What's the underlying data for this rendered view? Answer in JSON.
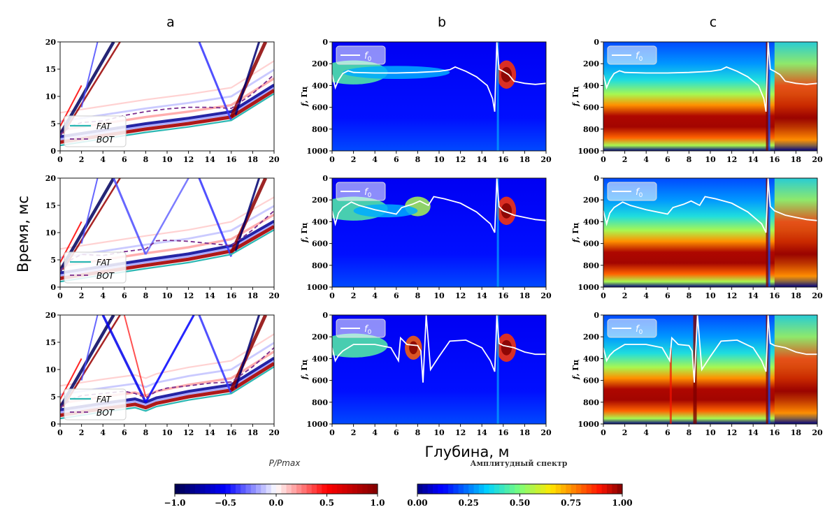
{
  "figure": {
    "column_labels": [
      "a",
      "b",
      "c"
    ],
    "ylabel_time": "Время, мс",
    "xlabel_depth": "Глубина, м",
    "ylabel_freq_prefix": "f",
    "ylabel_freq_unit": ", Гц",
    "f0_legend_base": "f",
    "f0_legend_sub": "0",
    "legend_fat": "FAT",
    "legend_bot": "BOT",
    "colorbar_left_title": "P/Pmax",
    "colorbar_right_title": "Амплитудный спектр",
    "colors": {
      "fat": "#2bb7b3",
      "bot": "#7b2d8e",
      "f0": "#ffffff"
    }
  },
  "chart_data": [
    {
      "type": "heatmap",
      "panel": "a1",
      "xlabel": "",
      "ylabel": "",
      "xlim": [
        0,
        20
      ],
      "ylim": [
        20,
        0
      ],
      "x_ticks": [
        0,
        2,
        4,
        6,
        8,
        10,
        12,
        14,
        16,
        18,
        20
      ],
      "y_ticks": [
        0,
        5,
        10,
        15,
        20
      ],
      "series": [
        {
          "name": "FAT",
          "x": [
            0,
            4,
            8,
            12,
            16,
            20
          ],
          "y": [
            1.0,
            2.2,
            3.4,
            4.4,
            5.6,
            10.5
          ]
        },
        {
          "name": "BOT",
          "x": [
            0,
            1,
            2,
            4,
            6,
            8,
            10,
            12,
            14,
            16,
            18,
            20
          ],
          "y": [
            3.0,
            4.5,
            5.2,
            5.5,
            6.5,
            7.2,
            7.7,
            8.0,
            8.0,
            7.8,
            10.5,
            14.0
          ]
        }
      ]
    },
    {
      "type": "heatmap",
      "panel": "a2",
      "xlim": [
        0,
        20
      ],
      "ylim": [
        20,
        0
      ],
      "x_ticks": [
        0,
        2,
        4,
        6,
        8,
        10,
        12,
        14,
        16,
        18,
        20
      ],
      "y_ticks": [
        0,
        5,
        10,
        15,
        20
      ],
      "series": [
        {
          "name": "FAT",
          "x": [
            0,
            4,
            8,
            12,
            16,
            20
          ],
          "y": [
            1.0,
            2.2,
            3.4,
            4.5,
            6.0,
            10.5
          ]
        },
        {
          "name": "BOT",
          "x": [
            0,
            1,
            2,
            4,
            6,
            8,
            9,
            10,
            12,
            14,
            16,
            18,
            20
          ],
          "y": [
            3.0,
            5.0,
            6.0,
            5.8,
            6.5,
            7.0,
            8.5,
            8.6,
            8.4,
            8.0,
            7.6,
            10.5,
            14.0
          ]
        }
      ]
    },
    {
      "type": "heatmap",
      "panel": "a3",
      "xlim": [
        0,
        20
      ],
      "ylim": [
        20,
        0
      ],
      "x_ticks": [
        0,
        2,
        4,
        6,
        8,
        10,
        12,
        14,
        16,
        18,
        20
      ],
      "y_ticks": [
        0,
        5,
        10,
        15,
        20
      ],
      "series": [
        {
          "name": "FAT",
          "x": [
            0,
            4,
            7,
            8,
            9,
            12,
            16,
            20
          ],
          "y": [
            1.0,
            2.2,
            3.0,
            2.4,
            3.2,
            4.4,
            5.6,
            10.5
          ]
        },
        {
          "name": "BOT",
          "x": [
            0,
            1,
            2,
            4,
            6,
            7,
            8,
            9,
            10,
            12,
            14,
            16,
            18,
            20
          ],
          "y": [
            3.0,
            4.5,
            5.2,
            5.6,
            6.0,
            5.6,
            4.8,
            6.0,
            6.6,
            7.0,
            7.5,
            7.7,
            10.5,
            14.0
          ]
        }
      ]
    },
    {
      "type": "heatmap",
      "panel": "b1",
      "xlim": [
        0,
        20
      ],
      "ylim": [
        0,
        1000
      ],
      "x_ticks": [
        0,
        2,
        4,
        6,
        8,
        10,
        12,
        14,
        16,
        18,
        20
      ],
      "y_ticks": [
        0,
        200,
        400,
        600,
        800,
        1000
      ],
      "series": [
        {
          "name": "f0",
          "x": [
            0.0,
            0.3,
            0.6,
            1.0,
            1.5,
            2.0,
            4.0,
            6.0,
            8.0,
            10.0,
            11.0,
            11.5,
            12.5,
            13.5,
            14.5,
            15.0,
            15.2,
            15.3,
            15.4,
            15.6,
            16.0,
            16.5,
            17.0,
            18.0,
            19.0,
            20.0
          ],
          "y": [
            300,
            420,
            350,
            290,
            265,
            280,
            285,
            285,
            280,
            270,
            255,
            230,
            270,
            320,
            400,
            520,
            640,
            300,
            0,
            250,
            270,
            300,
            360,
            380,
            390,
            380
          ]
        }
      ]
    },
    {
      "type": "heatmap",
      "panel": "b2",
      "xlim": [
        0,
        20
      ],
      "ylim": [
        0,
        1000
      ],
      "x_ticks": [
        0,
        2,
        4,
        6,
        8,
        10,
        12,
        14,
        16,
        18,
        20
      ],
      "y_ticks": [
        0,
        200,
        400,
        600,
        800,
        1000
      ],
      "series": [
        {
          "name": "f0",
          "x": [
            0.0,
            0.3,
            0.6,
            1.0,
            1.8,
            2.5,
            4.0,
            6.0,
            6.5,
            7.5,
            8.2,
            9.0,
            9.5,
            10.5,
            12.0,
            13.5,
            14.8,
            15.2,
            15.3,
            15.4,
            15.6,
            16.0,
            17.0,
            18.0,
            19.0,
            20.0
          ],
          "y": [
            300,
            420,
            320,
            270,
            220,
            250,
            290,
            330,
            270,
            240,
            210,
            250,
            170,
            190,
            230,
            310,
            420,
            500,
            250,
            0,
            260,
            300,
            340,
            360,
            380,
            390
          ]
        }
      ]
    },
    {
      "type": "heatmap",
      "panel": "b3",
      "xlim": [
        0,
        20
      ],
      "ylim": [
        0,
        1000
      ],
      "x_ticks": [
        0,
        2,
        4,
        6,
        8,
        10,
        12,
        14,
        16,
        18,
        20
      ],
      "y_ticks": [
        0,
        200,
        400,
        600,
        800,
        1000
      ],
      "series": [
        {
          "name": "f0",
          "x": [
            0.0,
            0.3,
            0.6,
            1.0,
            2.0,
            4.0,
            5.5,
            6.2,
            6.4,
            7.0,
            8.0,
            8.3,
            8.5,
            8.8,
            9.2,
            10.0,
            11.0,
            12.5,
            14.0,
            14.8,
            15.2,
            15.3,
            15.4,
            15.6,
            16.0,
            17.0,
            18.0,
            19.0,
            20.0
          ],
          "y": [
            300,
            420,
            370,
            330,
            270,
            270,
            300,
            420,
            210,
            270,
            280,
            330,
            620,
            0,
            500,
            380,
            240,
            230,
            300,
            420,
            520,
            280,
            0,
            260,
            280,
            300,
            340,
            360,
            360
          ]
        }
      ]
    },
    {
      "type": "heatmap",
      "panel": "c1",
      "xlim": [
        0,
        20
      ],
      "ylim": [
        0,
        1000
      ],
      "x_ticks": [
        0,
        2,
        4,
        6,
        8,
        10,
        12,
        14,
        16,
        18,
        20
      ],
      "y_ticks": [
        0,
        200,
        400,
        600,
        800,
        1000
      ],
      "series": [
        {
          "name": "f0",
          "x": [
            0.0,
            0.3,
            0.6,
            1.0,
            1.5,
            2.0,
            4.0,
            6.0,
            8.0,
            10.0,
            11.0,
            11.5,
            12.5,
            13.5,
            14.5,
            15.0,
            15.2,
            15.3,
            15.4,
            15.6,
            16.0,
            16.5,
            17.0,
            18.0,
            19.0,
            20.0
          ],
          "y": [
            300,
            420,
            350,
            290,
            265,
            280,
            285,
            285,
            280,
            270,
            255,
            230,
            270,
            320,
            400,
            520,
            640,
            300,
            0,
            250,
            270,
            300,
            360,
            380,
            390,
            380
          ]
        }
      ]
    },
    {
      "type": "heatmap",
      "panel": "c2",
      "xlim": [
        0,
        20
      ],
      "ylim": [
        0,
        1000
      ],
      "x_ticks": [
        0,
        2,
        4,
        6,
        8,
        10,
        12,
        14,
        16,
        18,
        20
      ],
      "y_ticks": [
        0,
        200,
        400,
        600,
        800,
        1000
      ],
      "series": [
        {
          "name": "f0",
          "x": [
            0.0,
            0.3,
            0.6,
            1.0,
            1.8,
            2.5,
            4.0,
            6.0,
            6.5,
            7.5,
            8.2,
            9.0,
            9.5,
            10.5,
            12.0,
            13.5,
            14.8,
            15.2,
            15.3,
            15.4,
            15.6,
            16.0,
            17.0,
            18.0,
            19.0,
            20.0
          ],
          "y": [
            300,
            420,
            320,
            270,
            220,
            250,
            290,
            330,
            270,
            240,
            210,
            250,
            170,
            190,
            230,
            310,
            420,
            500,
            250,
            0,
            260,
            300,
            340,
            360,
            380,
            390
          ]
        }
      ]
    },
    {
      "type": "heatmap",
      "panel": "c3",
      "xlim": [
        0,
        20
      ],
      "ylim": [
        0,
        1000
      ],
      "x_ticks": [
        0,
        2,
        4,
        6,
        8,
        10,
        12,
        14,
        16,
        18,
        20
      ],
      "y_ticks": [
        0,
        200,
        400,
        600,
        800,
        1000
      ],
      "series": [
        {
          "name": "f0",
          "x": [
            0.0,
            0.3,
            0.6,
            1.0,
            2.0,
            4.0,
            5.5,
            6.2,
            6.4,
            7.0,
            8.0,
            8.3,
            8.5,
            8.8,
            9.2,
            10.0,
            11.0,
            12.5,
            14.0,
            14.8,
            15.2,
            15.3,
            15.4,
            15.6,
            16.0,
            17.0,
            18.0,
            19.0,
            20.0
          ],
          "y": [
            300,
            420,
            370,
            330,
            270,
            270,
            300,
            420,
            210,
            270,
            280,
            330,
            620,
            0,
            500,
            380,
            240,
            230,
            300,
            420,
            520,
            280,
            0,
            260,
            280,
            300,
            340,
            360,
            360
          ]
        }
      ]
    },
    {
      "type": "colorbar",
      "panel": "colorbar-left",
      "colormap": "seismic",
      "range": [
        -1.0,
        1.0
      ],
      "ticks": [
        "−1.0",
        "−0.5",
        "0.0",
        "0.5",
        "1.0"
      ]
    },
    {
      "type": "colorbar",
      "panel": "colorbar-right",
      "colormap": "jet",
      "range": [
        0.0,
        1.0
      ],
      "ticks": [
        "0.00",
        "0.25",
        "0.50",
        "0.75",
        "1.00"
      ]
    }
  ]
}
